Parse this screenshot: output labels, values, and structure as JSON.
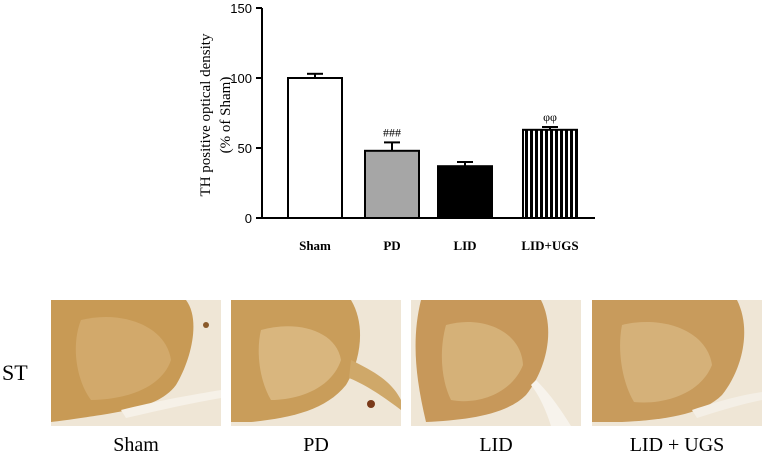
{
  "chart_data": {
    "type": "bar",
    "ylabel_line1": "TH positive optical density",
    "ylabel_line2": "(% of Sham)",
    "ylim": [
      0,
      150
    ],
    "yticks": [
      0,
      50,
      100,
      150
    ],
    "categories": [
      "Sham",
      "PD",
      "LID",
      "LID+UGS"
    ],
    "values": [
      100,
      48,
      37,
      63
    ],
    "errors": [
      3,
      6,
      3,
      2
    ],
    "annotations": [
      "",
      "###",
      "",
      "φφ"
    ],
    "bar_fills": [
      "white",
      "gray",
      "black",
      "striped"
    ]
  },
  "image_panel": {
    "row_label": "ST",
    "captions": [
      "Sham",
      "PD",
      "LID",
      "LID + UGS"
    ]
  },
  "colors": {
    "stain_dark": "#b8843f",
    "stain_light": "#e3c99b",
    "background_tissue": "#efe6d6",
    "bar_gray": "#a6a6a6"
  }
}
